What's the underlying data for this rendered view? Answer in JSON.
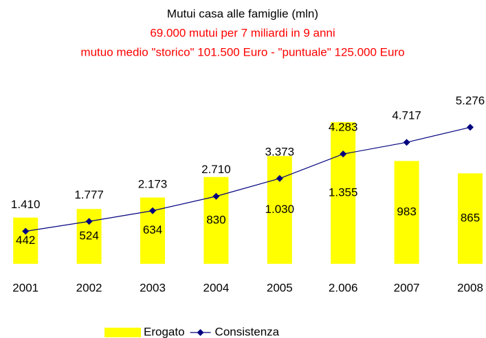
{
  "chart_data": {
    "type": "bar-line",
    "title": "Mutui casa alle famiglie (mln)",
    "subtitles": [
      "69.000 mutui per  7 miliardi in 9 anni",
      "mutuo medio \"storico\" 101.500 Euro - \"puntuale\" 125.000 Euro"
    ],
    "subtitle_color": "#ff0000",
    "categories": [
      "2001",
      "2002",
      "2003",
      "2004",
      "2005",
      "2.006",
      "2007",
      "2008"
    ],
    "series": [
      {
        "name": "Erogato",
        "color": "#ffff00",
        "type": "bar",
        "values": [
          442,
          524,
          634,
          830,
          1030,
          1355,
          983,
          865
        ],
        "value_labels": [
          "442",
          "524",
          "634",
          "830",
          "1.030",
          "1.355",
          "983",
          "865"
        ]
      },
      {
        "name": "Consistenza",
        "color": "#000080",
        "type": "line",
        "axis": "y2",
        "values": [
          1410,
          1777,
          2173,
          2710,
          3373,
          4283,
          4717,
          5276
        ],
        "value_labels": [
          "1.410",
          "1.777",
          "2.173",
          "2.710",
          "3.373",
          "4.283",
          "4.717",
          "5.276"
        ]
      }
    ],
    "ylim": [
      0,
      1800
    ],
    "y2lim": [
      200,
      7200
    ],
    "legend": "bottom"
  }
}
